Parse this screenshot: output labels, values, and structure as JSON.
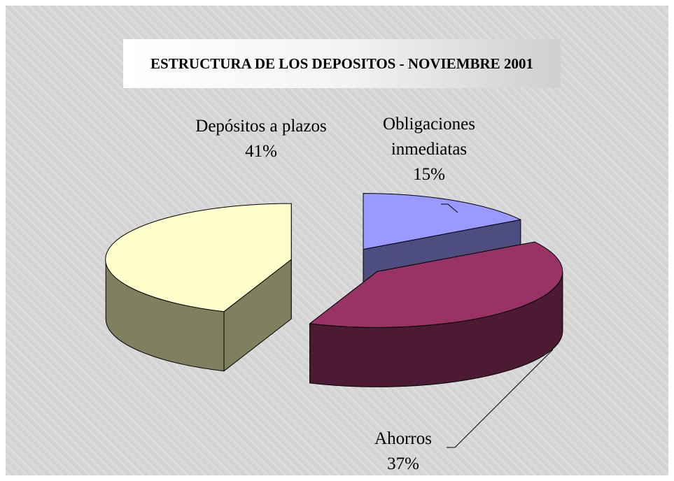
{
  "chart_data": {
    "type": "pie",
    "title": "ESTRUCTURA DE LOS DEPOSITOS - NOVIEMBRE 2001",
    "categories": [
      "Obligaciones inmediatas",
      "Ahorros",
      "Depósitos a plazos"
    ],
    "values": [
      15,
      37,
      41
    ],
    "value_labels": [
      "15%",
      "37%",
      "41%"
    ],
    "colors": [
      "#9999ff",
      "#993366",
      "#ffffcc"
    ],
    "side_colors": [
      "#4d4d80",
      "#4d1a33",
      "#808060"
    ]
  }
}
